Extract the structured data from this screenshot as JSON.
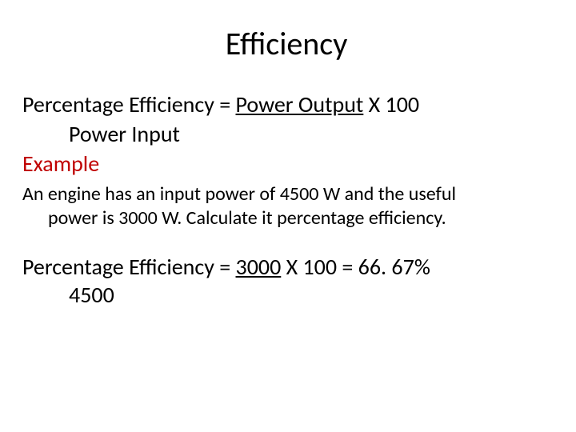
{
  "colors": {
    "background": "#ffffff",
    "text": "#000000",
    "accent": "#c00000"
  },
  "typography": {
    "family": "Calibri",
    "title_fontsize": 40,
    "body_fontsize": 28,
    "problem_fontsize": 24
  },
  "title": "Efficiency",
  "formula": {
    "lhs": "Percentage Efficiency = ",
    "numerator": "Power Output",
    "mult": "  X 100",
    "denominator": "Power Input"
  },
  "example_label": "Example",
  "problem": {
    "line1": "An engine has an input power of 4500 W and the useful",
    "line2": "power is 3000 W. Calculate it percentage efficiency."
  },
  "calculation": {
    "lhs": "Percentage Efficiency = ",
    "numerator": "3000",
    "mult": " X 100 = 66. 67%",
    "denominator": "4500"
  }
}
